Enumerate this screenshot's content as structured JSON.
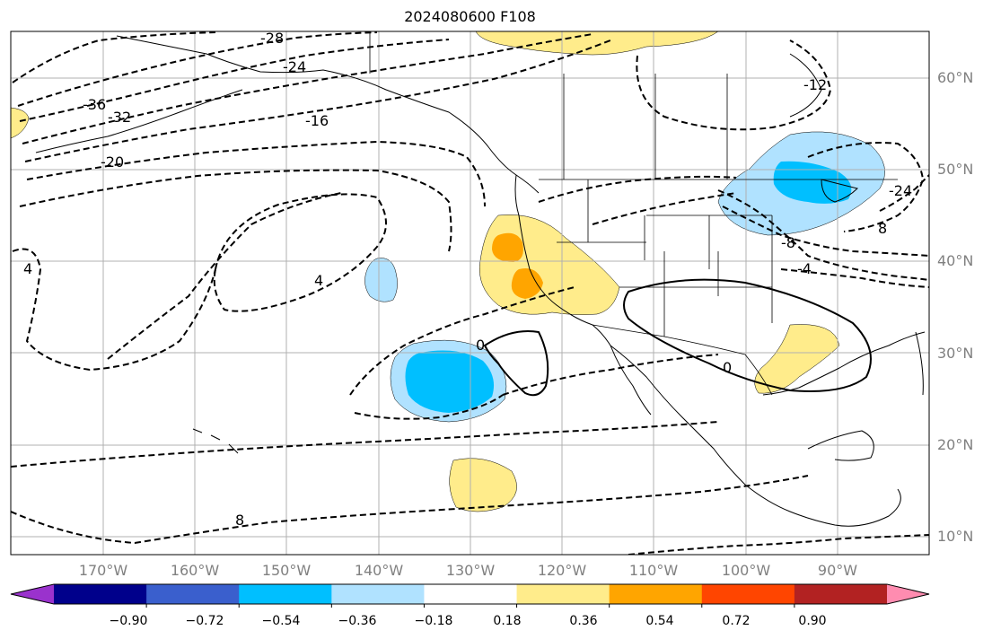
{
  "title": "2024080600 F108",
  "lat_labels": [
    "60°N",
    "50°N",
    "40°N",
    "30°N",
    "20°N",
    "10°N"
  ],
  "lon_labels": [
    "170°W",
    "160°W",
    "150°W",
    "140°W",
    "130°W",
    "120°W",
    "110°W",
    "100°W",
    "90°W"
  ],
  "colorbar": {
    "ticks": [
      "−0.90",
      "−0.72",
      "−0.54",
      "−0.36",
      "−0.18",
      "0.18",
      "0.36",
      "0.54",
      "0.72",
      "0.90"
    ],
    "colors": [
      "#9a32cd",
      "#00008b",
      "#3a5fcd",
      "#00bfff",
      "#b0e2ff",
      "#ffffff",
      "#ffec8b",
      "#ffa500",
      "#ff4500",
      "#b22222",
      "#ff8cb0"
    ]
  },
  "contour_labels": [
    "-28",
    "-24",
    "-36",
    "-32",
    "-20",
    "-16",
    "4",
    "4",
    "8",
    "0",
    "0",
    "-12",
    "-24",
    "-8",
    "-4",
    "8"
  ],
  "shading_colors": {
    "light_yellow": "#ffec8b",
    "orange": "#ffa500",
    "light_blue": "#b0e2ff",
    "blue": "#00bfff"
  }
}
